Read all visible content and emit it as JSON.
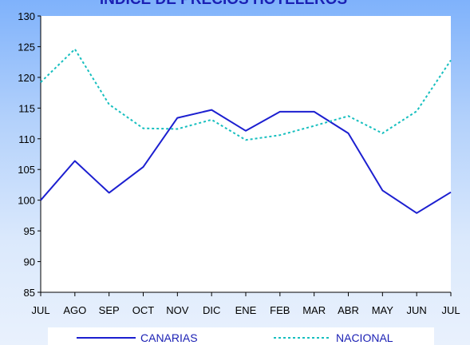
{
  "chart_data": {
    "type": "line",
    "title": "INDICE DE PRECIOS HOTELEROS",
    "categories": [
      "JUL",
      "AGO",
      "SEP",
      "OCT",
      "NOV",
      "DIC",
      "ENE",
      "FEB",
      "MAR",
      "ABR",
      "MAY",
      "JUN",
      "JUL"
    ],
    "series": [
      {
        "name": "CANARIAS",
        "color": "#1c1fd0",
        "dash": "solid",
        "values": [
          100.0,
          106.4,
          101.2,
          105.4,
          113.4,
          114.7,
          111.3,
          114.4,
          114.4,
          110.9,
          101.6,
          97.9,
          101.3
        ]
      },
      {
        "name": "NACIONAL",
        "color": "#17bfbf",
        "dash": "dotted",
        "values": [
          119.2,
          124.6,
          115.6,
          111.7,
          111.6,
          113.1,
          109.8,
          110.6,
          112.1,
          113.7,
          110.9,
          114.5,
          122.8
        ]
      }
    ],
    "ylim": [
      85,
      130
    ],
    "yticks": [
      "85",
      "90",
      "95",
      "100",
      "105",
      "110",
      "115",
      "120",
      "125",
      "130"
    ],
    "xlabel": "",
    "ylabel": "",
    "grid": false,
    "legend_position": "bottom"
  }
}
